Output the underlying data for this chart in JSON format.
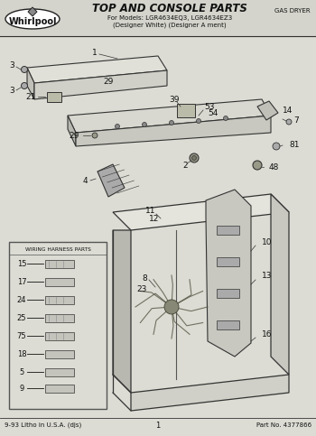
{
  "title": "TOP AND CONSOLE PARTS",
  "subtitle1": "For Models: LGR4634EQ3, LGR4634EZ3",
  "subtitle2": "(Designer White) (Designer A ment)",
  "brand": "Whirlpool",
  "category": "GAS DRYER",
  "page_num": "1",
  "part_no": "Part No. 4377866",
  "footer_left": "9-93 Litho in U.S.A. (djs)",
  "bg_color": "#d4d4cc",
  "line_color": "#333333",
  "fill_light": "#e8e8e0",
  "fill_mid": "#c8c8c0",
  "fill_dark": "#b0b0a8",
  "inset_title": "WIRING HARNESS PARTS",
  "inset_items": [
    "15",
    "17",
    "24",
    "25",
    "75",
    "18",
    "5",
    "9"
  ],
  "font_color": "#111111",
  "header_bg": "#d4d4cc"
}
